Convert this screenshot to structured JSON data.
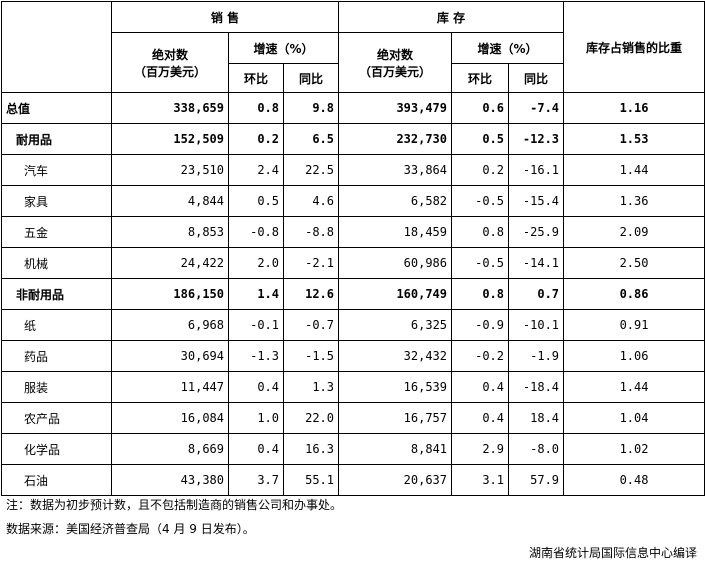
{
  "header": {
    "sales": "销 售",
    "inventory": "库 存",
    "ratio": "库存占销售的比重",
    "absolute_line1": "绝对数",
    "absolute_line2": "（百万美元）",
    "growth": "增速（%）",
    "mom": "环比",
    "yoy": "同比"
  },
  "rows": [
    {
      "name": "总值",
      "s_abs": "338,659",
      "s_mom": "0.8",
      "s_yoy": "9.8",
      "i_abs": "393,479",
      "i_mom": "0.6",
      "i_yoy": "-7.4",
      "ratio": "1.16"
    },
    {
      "name": "耐用品",
      "s_abs": "152,509",
      "s_mom": "0.2",
      "s_yoy": "6.5",
      "i_abs": "232,730",
      "i_mom": "0.5",
      "i_yoy": "-12.3",
      "ratio": "1.53"
    },
    {
      "name": "汽车",
      "s_abs": "23,510",
      "s_mom": "2.4",
      "s_yoy": "22.5",
      "i_abs": "33,864",
      "i_mom": "0.2",
      "i_yoy": "-16.1",
      "ratio": "1.44"
    },
    {
      "name": "家具",
      "s_abs": "4,844",
      "s_mom": "0.5",
      "s_yoy": "4.6",
      "i_abs": "6,582",
      "i_mom": "-0.5",
      "i_yoy": "-15.4",
      "ratio": "1.36"
    },
    {
      "name": "五金",
      "s_abs": "8,853",
      "s_mom": "-0.8",
      "s_yoy": "-8.8",
      "i_abs": "18,459",
      "i_mom": "0.8",
      "i_yoy": "-25.9",
      "ratio": "2.09"
    },
    {
      "name": "机械",
      "s_abs": "24,422",
      "s_mom": "2.0",
      "s_yoy": "-2.1",
      "i_abs": "60,986",
      "i_mom": "-0.5",
      "i_yoy": "-14.1",
      "ratio": "2.50"
    },
    {
      "name": "非耐用品",
      "s_abs": "186,150",
      "s_mom": "1.4",
      "s_yoy": "12.6",
      "i_abs": "160,749",
      "i_mom": "0.8",
      "i_yoy": "0.7",
      "ratio": "0.86"
    },
    {
      "name": "纸",
      "s_abs": "6,968",
      "s_mom": "-0.1",
      "s_yoy": "-0.7",
      "i_abs": "6,325",
      "i_mom": "-0.9",
      "i_yoy": "-10.1",
      "ratio": "0.91"
    },
    {
      "name": "药品",
      "s_abs": "30,694",
      "s_mom": "-1.3",
      "s_yoy": "-1.5",
      "i_abs": "32,432",
      "i_mom": "-0.2",
      "i_yoy": "-1.9",
      "ratio": "1.06"
    },
    {
      "name": "服装",
      "s_abs": "11,447",
      "s_mom": "0.4",
      "s_yoy": "1.3",
      "i_abs": "16,539",
      "i_mom": "0.4",
      "i_yoy": "-18.4",
      "ratio": "1.44"
    },
    {
      "name": "农产品",
      "s_abs": "16,084",
      "s_mom": "1.0",
      "s_yoy": "22.0",
      "i_abs": "16,757",
      "i_mom": "0.4",
      "i_yoy": "18.4",
      "ratio": "1.04"
    },
    {
      "name": "化学品",
      "s_abs": "8,669",
      "s_mom": "0.4",
      "s_yoy": "16.3",
      "i_abs": "8,841",
      "i_mom": "2.9",
      "i_yoy": "-8.0",
      "ratio": "1.02"
    },
    {
      "name": "石油",
      "s_abs": "43,380",
      "s_mom": "3.7",
      "s_yoy": "55.1",
      "i_abs": "20,637",
      "i_mom": "3.1",
      "i_yoy": "57.9",
      "ratio": "0.48"
    }
  ],
  "notes": {
    "note": "注：数据为初步预计数，且不包括制造商的销售公司和办事处。",
    "source": "数据来源：美国经济普查局（4 月 9 日发布）。",
    "credit": "湖南省统计局国际信息中心编译"
  }
}
